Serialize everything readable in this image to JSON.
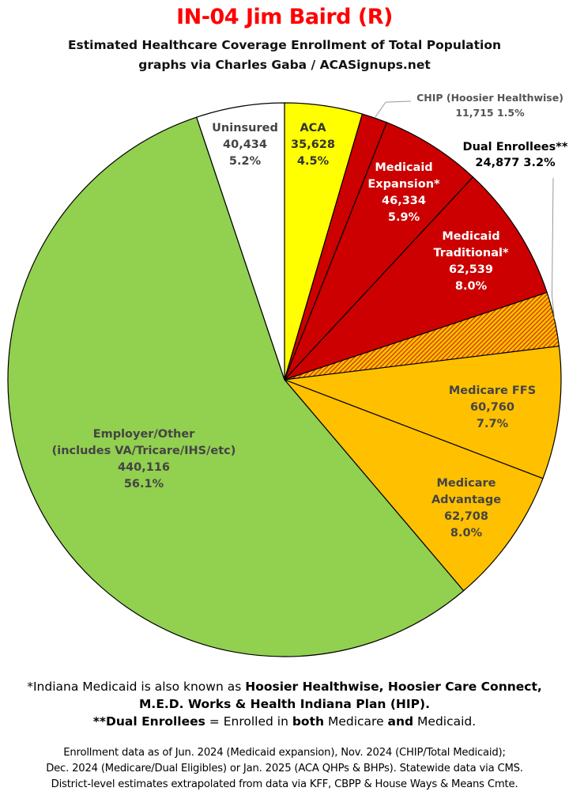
{
  "header": {
    "title": "IN-04 Jim Baird (R)",
    "subtitle_line1": "Estimated Healthcare Coverage Enrollment of Total Population",
    "subtitle_line2": "graphs via Charles Gaba / ACASignups.net"
  },
  "chart_data": {
    "type": "pie",
    "title": "IN-04 Jim Baird (R)",
    "slices": [
      {
        "name": "ACA",
        "label_lines": [
          "ACA",
          "35,628",
          "4.5%"
        ],
        "value": 35628,
        "percent": 4.5,
        "color": "#ffff00",
        "pattern": false,
        "label_color": "#333333"
      },
      {
        "name": "CHIP (Hoosier Healthwise)",
        "label_lines": [
          "CHIP (Hoosier Healthwise)",
          "11,715 1.5%"
        ],
        "value": 11715,
        "percent": 1.5,
        "color": "#cc0000",
        "pattern": false,
        "label_color": "#555555"
      },
      {
        "name": "Medicaid Expansion*",
        "label_lines": [
          "Medicaid",
          "Expansion*",
          "46,334",
          "5.9%"
        ],
        "value": 46334,
        "percent": 5.9,
        "color": "#cc0000",
        "pattern": false,
        "label_color": "#ffffff"
      },
      {
        "name": "Medicaid Traditional*",
        "label_lines": [
          "Medicaid",
          "Traditional*",
          "62,539",
          "8.0%"
        ],
        "value": 62539,
        "percent": 8.0,
        "color": "#cc0000",
        "pattern": false,
        "label_color": "#ffffff"
      },
      {
        "name": "Dual Enrollees**",
        "label_lines": [
          "Dual Enrollees**",
          "24,877 3.2%"
        ],
        "value": 24877,
        "percent": 3.2,
        "color": "#e85a00",
        "pattern": true,
        "label_color": "#000000"
      },
      {
        "name": "Medicare FFS",
        "label_lines": [
          "Medicare FFS",
          "60,760",
          "7.7%"
        ],
        "value": 60760,
        "percent": 7.7,
        "color": "#ffc000",
        "pattern": false,
        "label_color": "#444444"
      },
      {
        "name": "Medicare Advantage",
        "label_lines": [
          "Medicare",
          "Advantage",
          "62,708",
          "8.0%"
        ],
        "value": 62708,
        "percent": 8.0,
        "color": "#ffc000",
        "pattern": false,
        "label_color": "#444444"
      },
      {
        "name": "Employer/Other (includes VA/Tricare/IHS/etc)",
        "label_lines": [
          "Employer/Other",
          "(includes VA/Tricare/IHS/etc)",
          "440,116",
          "56.1%"
        ],
        "value": 440116,
        "percent": 56.1,
        "color": "#92d050",
        "pattern": false,
        "label_color": "#444444"
      },
      {
        "name": "Uninsured",
        "label_lines": [
          "Uninsured",
          "40,434",
          "5.2%"
        ],
        "value": 40434,
        "percent": 5.2,
        "color": "#ffffff",
        "pattern": false,
        "label_color": "#444444"
      }
    ]
  },
  "footnotes": {
    "medicaid_intro": "*Indiana Medicaid is also known as ",
    "medicaid_names_1": "Hoosier Healthwise, Hoosier Care Connect,",
    "medicaid_names_2": "M.E.D. Works & Health Indiana Plan (HIP).",
    "medicaid_end": "",
    "dual_term": "**Dual Enrollees",
    "dual_mid": " = Enrolled in ",
    "dual_both": "both",
    "dual_medicare": " Medicare ",
    "dual_and": "and",
    "dual_medicaid": " Medicaid.",
    "source_line1": "Enrollment data as of Jun. 2024 (Medicaid expansion), Nov. 2024 (CHIP/Total Medicaid);",
    "source_line2": "Dec. 2024 (Medicare/Dual Eligibles) or Jan. 2025 (ACA QHPs & BHPs). Statewide data via CMS.",
    "source_line3": "District-level estimates extrapolated from data via KFF, CBPP & House Ways & Means Cmte."
  }
}
